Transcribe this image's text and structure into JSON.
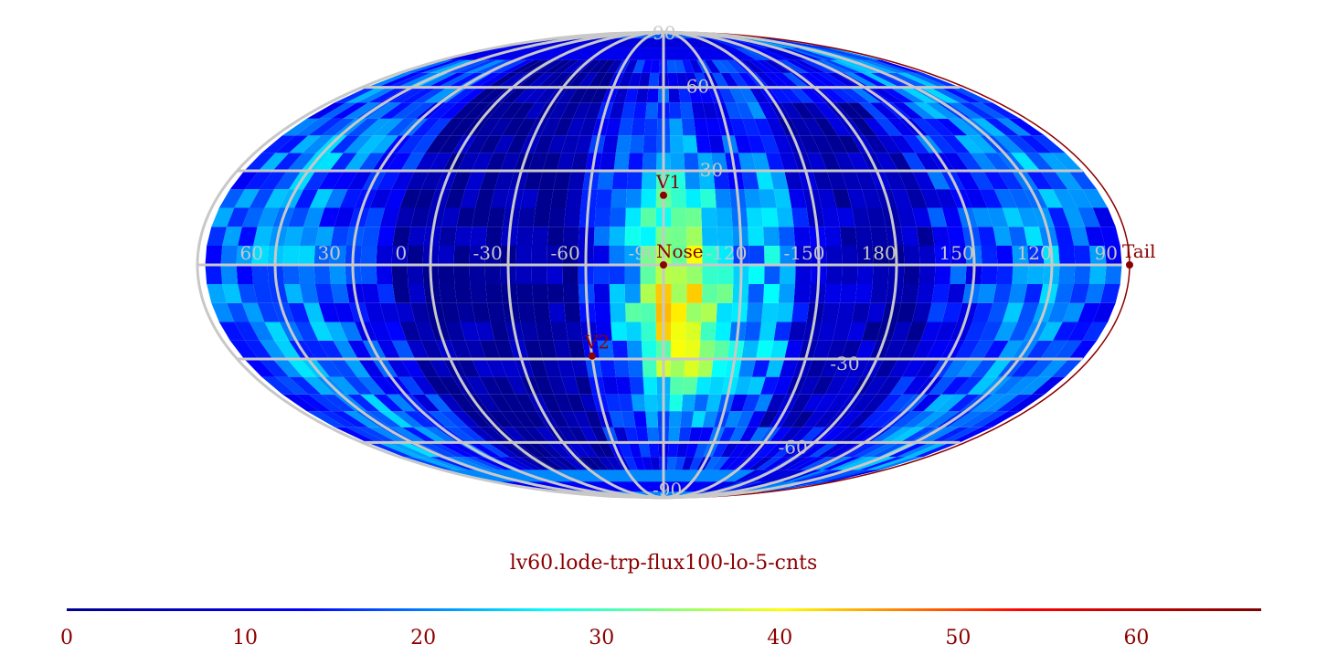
{
  "map": {
    "projection": "Mollweide",
    "grid_color": "#c8c8c8",
    "background": "#00007f",
    "meridian_labels": [
      "60",
      "30",
      "0",
      "-30",
      "-60",
      "-90",
      "-120",
      "-150",
      "180",
      "150",
      "120",
      "90"
    ],
    "parallel_labels": [
      "90",
      "60",
      "30",
      "-30",
      "-60",
      "-90"
    ],
    "markers": [
      {
        "name": "V1",
        "lon": -105,
        "lat": 22,
        "color": "#8b0000"
      },
      {
        "name": "Nose",
        "lon": -105,
        "lat": 0,
        "color": "#8b0000"
      },
      {
        "name": "V2",
        "lon": -75,
        "lat": -29,
        "color": "#8b0000"
      },
      {
        "name": "Tail",
        "lon": 75,
        "lat": 0,
        "color": "#8b0000"
      }
    ]
  },
  "title": "lv60.lode-trp-flux100-lo-5-cnts",
  "colorbar": {
    "min": 0,
    "max": 67,
    "ticks": [
      "0",
      "10",
      "20",
      "30",
      "40",
      "50",
      "60"
    ],
    "colors": [
      "#00008f",
      "#0000ff",
      "#00ffff",
      "#ffff00",
      "#ff0000",
      "#800000"
    ]
  }
}
